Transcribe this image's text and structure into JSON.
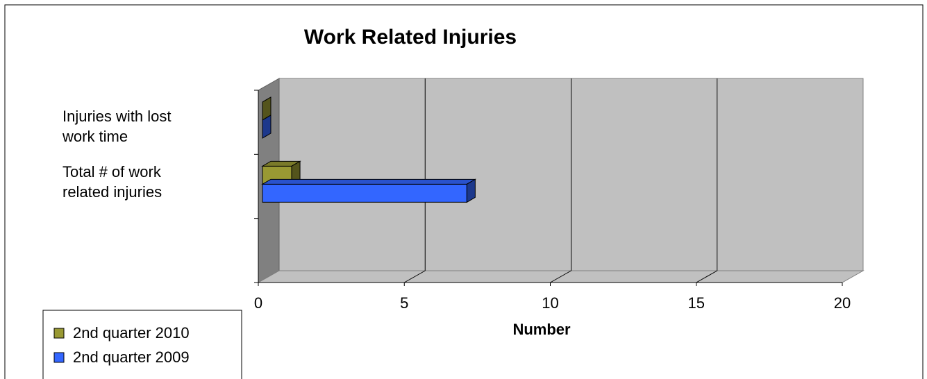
{
  "chart_data": {
    "type": "bar3d",
    "orientation": "horizontal",
    "title": "Work Related Injuries",
    "x_label": "Number",
    "categories": [
      "Injuries with lost work time",
      "Total # of work related injuries",
      null
    ],
    "series": [
      {
        "name": "2nd quarter 2010",
        "color": "#999933",
        "values": [
          0,
          1,
          null
        ]
      },
      {
        "name": "2nd quarter 2009",
        "color": "#3366ff",
        "values": [
          0,
          7,
          null
        ]
      }
    ],
    "xlim": [
      0,
      20
    ],
    "xticks": [
      0,
      5,
      10,
      15,
      20
    ],
    "grid": true,
    "legend": "bottom-left"
  }
}
